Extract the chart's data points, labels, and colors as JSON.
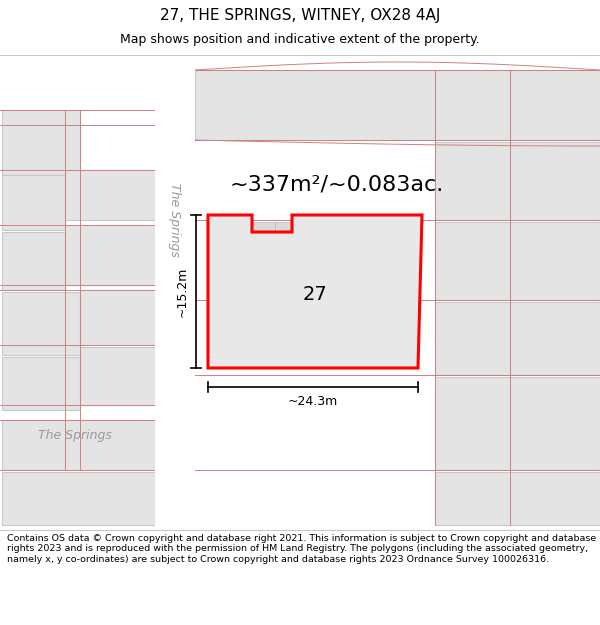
{
  "title": "27, THE SPRINGS, WITNEY, OX28 4AJ",
  "subtitle": "Map shows position and indicative extent of the property.",
  "footer": "Contains OS data © Crown copyright and database right 2021. This information is subject to Crown copyright and database rights 2023 and is reproduced with the permission of HM Land Registry. The polygons (including the associated geometry, namely x, y co-ordinates) are subject to Crown copyright and database rights 2023 Ordnance Survey 100026316.",
  "area_label": "~337m²/~0.083ac.",
  "number_label": "27",
  "width_label": "~24.3m",
  "height_label": "~15.2m",
  "road_label_v": "The Springs",
  "road_label_h": "The Springs",
  "bg_color": "#ffffff",
  "plot_fill": "#e8e8e8",
  "plot_outline": "#ff0000",
  "building_fill": "#d0d0d0",
  "building_edge": "#b0b0b0",
  "light_line": "#e08888",
  "gray_fill": "#e0e0e0",
  "gray_edge": "#c0b8b8",
  "road_gray": "#cccccc",
  "title_fontsize": 11,
  "subtitle_fontsize": 9,
  "footer_fontsize": 6.8,
  "area_fontsize": 16,
  "label_fontsize": 14,
  "dim_fontsize": 9,
  "road_fontsize": 9
}
